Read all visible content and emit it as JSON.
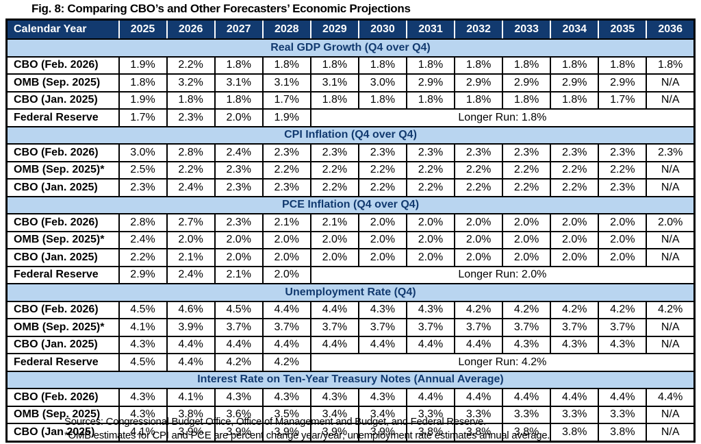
{
  "title": "Fig. 8: Comparing CBO’s and Other Forecasters’ Economic Projections",
  "colors": {
    "header_bg": "#123A6F",
    "header_text": "#FFFFFF",
    "band_bg": "#B9D5F0",
    "band_text": "#123A6F",
    "border": "#000000"
  },
  "footnotes": [
    "Sources: Congressional Budget Office, Office of Management and Budget, and Federal Reserve.",
    "*OMB estimates for CPI and PCE are percent change year/year; unemployment rate estimates annual average."
  ],
  "chart_data": {
    "type": "table",
    "title": "Fig. 8: Comparing CBO’s and Other Forecasters’ Economic Projections",
    "corner_label": "Calendar Year",
    "years": [
      "2025",
      "2026",
      "2027",
      "2028",
      "2029",
      "2030",
      "2031",
      "2032",
      "2033",
      "2034",
      "2035",
      "2036"
    ],
    "sections": [
      {
        "title": "Real GDP Growth (Q4 over Q4)",
        "rows": [
          {
            "label": "CBO (Feb. 2026)",
            "values": [
              "1.9%",
              "2.2%",
              "1.8%",
              "1.8%",
              "1.8%",
              "1.8%",
              "1.8%",
              "1.8%",
              "1.8%",
              "1.8%",
              "1.8%",
              "1.8%"
            ]
          },
          {
            "label": "OMB (Sep. 2025)",
            "values": [
              "1.8%",
              "3.2%",
              "3.1%",
              "3.1%",
              "3.1%",
              "3.0%",
              "2.9%",
              "2.9%",
              "2.9%",
              "2.9%",
              "2.9%",
              "N/A"
            ]
          },
          {
            "label": "CBO (Jan. 2025)",
            "values": [
              "1.9%",
              "1.8%",
              "1.8%",
              "1.7%",
              "1.8%",
              "1.8%",
              "1.8%",
              "1.8%",
              "1.8%",
              "1.8%",
              "1.7%",
              "N/A"
            ]
          },
          {
            "label": "Federal Reserve",
            "values": [
              "1.7%",
              "2.3%",
              "2.0%",
              "1.9%"
            ],
            "merged": "Longer Run: 1.8%"
          }
        ]
      },
      {
        "title": "CPI Inflation (Q4 over Q4)",
        "rows": [
          {
            "label": "CBO (Feb. 2026)",
            "values": [
              "3.0%",
              "2.8%",
              "2.4%",
              "2.3%",
              "2.3%",
              "2.3%",
              "2.3%",
              "2.3%",
              "2.3%",
              "2.3%",
              "2.3%",
              "2.3%"
            ]
          },
          {
            "label": "OMB (Sep. 2025)*",
            "values": [
              "2.5%",
              "2.2%",
              "2.3%",
              "2.2%",
              "2.2%",
              "2.2%",
              "2.2%",
              "2.2%",
              "2.2%",
              "2.2%",
              "2.2%",
              "N/A"
            ]
          },
          {
            "label": "CBO (Jan. 2025)",
            "values": [
              "2.3%",
              "2.4%",
              "2.3%",
              "2.3%",
              "2.2%",
              "2.2%",
              "2.2%",
              "2.2%",
              "2.2%",
              "2.2%",
              "2.3%",
              "N/A"
            ]
          }
        ]
      },
      {
        "title": "PCE Inflation (Q4 over Q4)",
        "rows": [
          {
            "label": "CBO (Feb. 2026)",
            "values": [
              "2.8%",
              "2.7%",
              "2.3%",
              "2.1%",
              "2.1%",
              "2.0%",
              "2.0%",
              "2.0%",
              "2.0%",
              "2.0%",
              "2.0%",
              "2.0%"
            ]
          },
          {
            "label": "OMB (Sep. 2025)*",
            "values": [
              "2.4%",
              "2.0%",
              "2.0%",
              "2.0%",
              "2.0%",
              "2.0%",
              "2.0%",
              "2.0%",
              "2.0%",
              "2.0%",
              "2.0%",
              "N/A"
            ]
          },
          {
            "label": "CBO (Jan. 2025)",
            "values": [
              "2.2%",
              "2.1%",
              "2.0%",
              "2.0%",
              "2.0%",
              "2.0%",
              "2.0%",
              "2.0%",
              "2.0%",
              "2.0%",
              "2.0%",
              "N/A"
            ]
          },
          {
            "label": "Federal Reserve",
            "values": [
              "2.9%",
              "2.4%",
              "2.1%",
              "2.0%"
            ],
            "merged": "Longer Run: 2.0%"
          }
        ]
      },
      {
        "title": "Unemployment Rate (Q4)",
        "rows": [
          {
            "label": "CBO (Feb. 2026)",
            "values": [
              "4.5%",
              "4.6%",
              "4.5%",
              "4.4%",
              "4.4%",
              "4.3%",
              "4.3%",
              "4.2%",
              "4.2%",
              "4.2%",
              "4.2%",
              "4.2%"
            ]
          },
          {
            "label": "OMB (Sep. 2025)*",
            "values": [
              "4.1%",
              "3.9%",
              "3.7%",
              "3.7%",
              "3.7%",
              "3.7%",
              "3.7%",
              "3.7%",
              "3.7%",
              "3.7%",
              "3.7%",
              "N/A"
            ]
          },
          {
            "label": "CBO (Jan. 2025)",
            "values": [
              "4.3%",
              "4.4%",
              "4.4%",
              "4.4%",
              "4.4%",
              "4.4%",
              "4.4%",
              "4.4%",
              "4.3%",
              "4.3%",
              "4.3%",
              "N/A"
            ]
          },
          {
            "label": "Federal Reserve",
            "values": [
              "4.5%",
              "4.4%",
              "4.2%",
              "4.2%"
            ],
            "merged": "Longer Run: 4.2%"
          }
        ]
      },
      {
        "title": "Interest Rate on Ten-Year Treasury Notes (Annual Average)",
        "rows": [
          {
            "label": "CBO (Feb. 2026)",
            "values": [
              "4.3%",
              "4.1%",
              "4.3%",
              "4.3%",
              "4.3%",
              "4.3%",
              "4.4%",
              "4.4%",
              "4.4%",
              "4.4%",
              "4.4%",
              "4.4%"
            ]
          },
          {
            "label": "OMB (Sep. 2025)",
            "values": [
              "4.3%",
              "3.8%",
              "3.6%",
              "3.5%",
              "3.4%",
              "3.4%",
              "3.3%",
              "3.3%",
              "3.3%",
              "3.3%",
              "3.3%",
              "N/A"
            ]
          },
          {
            "label": "CBO (Jan 2025)",
            "values": [
              "4.1%",
              "3.9%",
              "3.9%",
              "3.9%",
              "3.9%",
              "3.9%",
              "3.8%",
              "3.8%",
              "3.8%",
              "3.8%",
              "3.8%",
              "N/A"
            ]
          }
        ]
      }
    ]
  }
}
